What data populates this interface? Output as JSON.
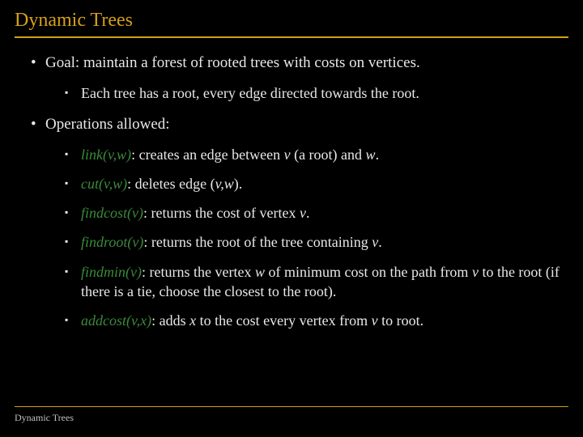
{
  "colors": {
    "background": "#000000",
    "title": "#d4a017",
    "text": "#e8e8e8",
    "operation": "#3a8a3a",
    "footer_text": "#c0c0c0"
  },
  "typography": {
    "title_fontsize": 24,
    "body_fontsize": 19,
    "sub_fontsize": 18,
    "footer_fontsize": 12,
    "font_family": "Georgia"
  },
  "title": "Dynamic Trees",
  "bullets": {
    "b1": "Goal: maintain a forest of rooted trees with costs on vertices.",
    "b1a": "Each tree has a root, every edge directed towards the root.",
    "b2": "Operations allowed:",
    "ops": {
      "link": {
        "name": "link(",
        "args": "v,w",
        "close": ")",
        "desc": ": creates an edge between ",
        "v": "v",
        "mid": " (a root) and ",
        "w": "w",
        "end": "."
      },
      "cut": {
        "name": "cut(",
        "args": "v,w",
        "close": ")",
        "desc": ": deletes edge (",
        "vw": "v,w",
        "end": ")."
      },
      "findcost": {
        "name": "findcost(",
        "args": "v",
        "close": ")",
        "desc": ": returns the cost of vertex ",
        "v": "v",
        "end": "."
      },
      "findroot": {
        "name": "findroot(",
        "args": "v",
        "close": ")",
        "desc": ": returns the root of the tree containing ",
        "v": "v",
        "end": "."
      },
      "findmin": {
        "name": "findmin(",
        "args": "v",
        "close": ")",
        "desc": ": returns the vertex ",
        "w": "w",
        "mid1": " of minimum cost on the path from ",
        "v": "v",
        "mid2": " to the root (if there is a tie, choose the closest to the root)."
      },
      "addcost": {
        "name": "addcost(",
        "args": "v,x",
        "close": ")",
        "desc": ": adds ",
        "x": "x",
        "mid": " to the cost every vertex from ",
        "v": "v",
        "end": " to root."
      }
    }
  },
  "footer": "Dynamic Trees"
}
